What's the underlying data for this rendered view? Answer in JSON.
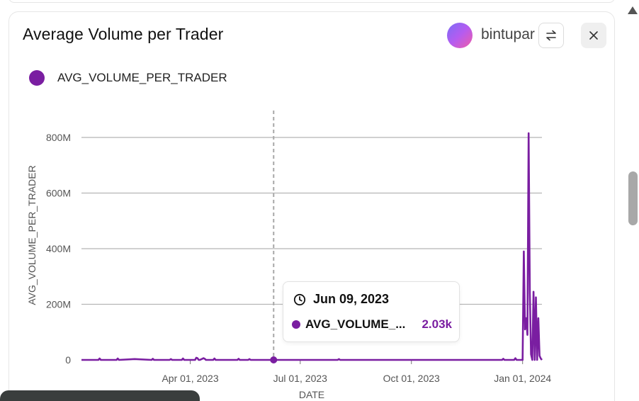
{
  "card": {
    "title": "Average Volume per Trader",
    "username": "bintupar",
    "swap_icon": "swap-arrows-icon",
    "close_icon": "close-icon"
  },
  "legend": {
    "label": "AVG_VOLUME_PER_TRADER",
    "color": "#7a1ea1"
  },
  "tooltip": {
    "date": "Jun 09, 2023",
    "series": "AVG_VOLUME_...",
    "value": "2.03k",
    "icon": "clock-icon"
  },
  "chart_data": {
    "type": "line",
    "xlabel": "DATE",
    "ylabel": "AVG_VOLUME_PER_TRADER",
    "x_ticks": [
      "Apr 01, 2023",
      "Jul 01, 2023",
      "Oct 01, 2023",
      "Jan 01, 2024"
    ],
    "y_ticks": [
      "0",
      "200M",
      "400M",
      "600M",
      "800M"
    ],
    "ylim": [
      0,
      800000000
    ],
    "xlim": [
      "2023-01-01",
      "2024-01-17"
    ],
    "grid": true,
    "legend_position": "top-left",
    "hover_date": "2023-06-09",
    "series": [
      {
        "name": "AVG_VOLUME_PER_TRADER",
        "color": "#7a1ea1",
        "x": [
          "2023-01-01",
          "2023-01-15",
          "2023-01-16",
          "2023-01-17",
          "2023-01-30",
          "2023-01-31",
          "2023-02-01",
          "2023-02-14",
          "2023-02-28",
          "2023-03-01",
          "2023-03-02",
          "2023-03-15",
          "2023-03-16",
          "2023-03-17",
          "2023-03-25",
          "2023-03-26",
          "2023-03-27",
          "2023-04-05",
          "2023-04-06",
          "2023-04-07",
          "2023-04-08",
          "2023-04-09",
          "2023-04-12",
          "2023-04-13",
          "2023-04-14",
          "2023-04-20",
          "2023-04-21",
          "2023-04-22",
          "2023-05-10",
          "2023-05-11",
          "2023-05-12",
          "2023-05-19",
          "2023-05-20",
          "2023-05-21",
          "2023-06-09",
          "2023-07-15",
          "2023-08-01",
          "2023-08-02",
          "2023-08-03",
          "2023-09-15",
          "2023-11-01",
          "2023-12-15",
          "2023-12-16",
          "2023-12-17",
          "2023-12-25",
          "2023-12-26",
          "2023-12-27",
          "2023-12-28",
          "2024-01-01",
          "2024-01-02",
          "2024-01-03",
          "2024-01-04",
          "2024-01-05",
          "2024-01-06",
          "2024-01-07",
          "2024-01-08",
          "2024-01-09",
          "2024-01-10",
          "2024-01-11",
          "2024-01-12",
          "2024-01-13",
          "2024-01-14",
          "2024-01-15",
          "2024-01-16",
          "2024-01-17"
        ],
        "y": [
          0,
          0,
          5000000,
          0,
          0,
          5000000,
          0,
          3000000,
          0,
          4000000,
          0,
          0,
          3000000,
          0,
          0,
          5000000,
          0,
          0,
          8000000,
          6000000,
          0,
          0,
          6000000,
          4000000,
          0,
          0,
          5000000,
          0,
          0,
          4000000,
          0,
          0,
          3000000,
          0,
          2030,
          0,
          0,
          3000000,
          0,
          0,
          0,
          0,
          4000000,
          0,
          0,
          6000000,
          0,
          0,
          0,
          390000000,
          110000000,
          150000000,
          90000000,
          815000000,
          240000000,
          20000000,
          0,
          245000000,
          0,
          225000000,
          0,
          150000000,
          15000000,
          5000000,
          0
        ]
      }
    ]
  }
}
